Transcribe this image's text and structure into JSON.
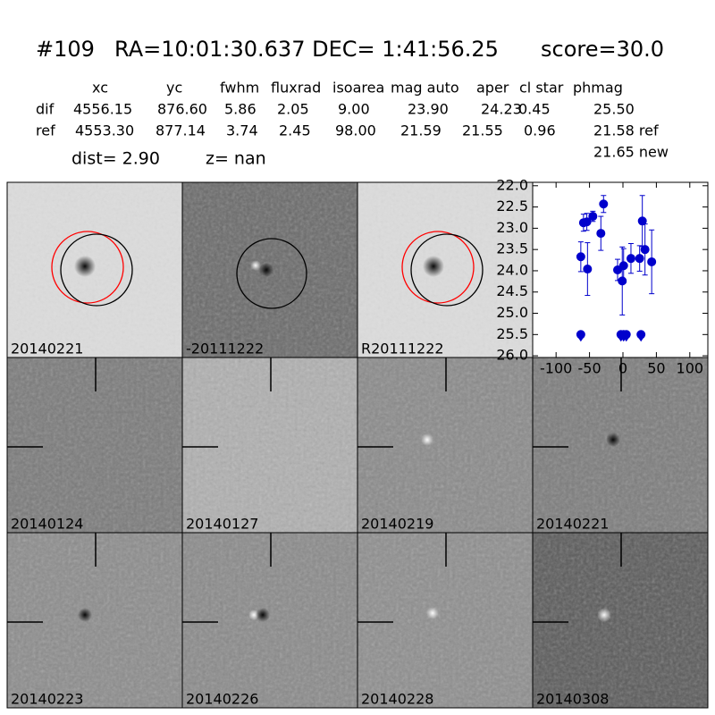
{
  "header": {
    "id": "#109",
    "coords": "RA=10:01:30.637 DEC= 1:41:56.25",
    "score": "score=30.0"
  },
  "table": {
    "columns": [
      "xc",
      "yc",
      "fwhm",
      "fluxrad",
      "isoarea",
      "mag auto",
      "aper",
      "cl star",
      "phmag"
    ],
    "rows": [
      [
        "dif",
        "4556.15",
        "876.60",
        "5.86",
        "2.05",
        "9.00",
        "23.90",
        "24.23",
        "0.45",
        "25.50"
      ],
      [
        "ref",
        "4553.30",
        "877.14",
        "3.74",
        "2.45",
        "98.00",
        "21.59",
        "21.55",
        "0.96",
        "21.58 ref"
      ]
    ],
    "extra": "21.65 new"
  },
  "dist": "dist=  2.90",
  "z": "z=   nan",
  "panels": [
    {
      "label": "20140221"
    },
    {
      "label": "-20111222"
    },
    {
      "label": "R20111222"
    },
    {
      "label": "20140124"
    },
    {
      "label": "20140127"
    },
    {
      "label": "20140219"
    },
    {
      "label": "20140221",
      "color": "#ff0000"
    },
    {
      "label": "20140223"
    },
    {
      "label": "20140226"
    },
    {
      "label": "20140228"
    },
    {
      "label": "20140308"
    }
  ],
  "chart_data": {
    "type": "scatter",
    "xlim": [
      -135,
      127
    ],
    "ylim": [
      26.04,
      21.92
    ],
    "xticks": [
      -100,
      -50,
      0,
      50,
      100
    ],
    "yticks": [
      {
        "value": 22,
        "label": "22.0"
      },
      {
        "value": 22.5,
        "label": "22.5"
      },
      {
        "value": 23,
        "label": "23.0"
      },
      {
        "value": 23.5,
        "label": "23.5"
      },
      {
        "value": 24,
        "label": "24.0"
      },
      {
        "value": 24.5,
        "label": "24.5"
      },
      {
        "value": 25,
        "label": "25.0"
      },
      {
        "value": 25.5,
        "label": "25.5"
      },
      {
        "value": 26,
        "label": "26.0"
      }
    ],
    "series": [
      {
        "color": "#0000cc",
        "x": [
          -63,
          -59,
          -54,
          -53,
          -45,
          -33,
          -29,
          -8,
          -1,
          1,
          12,
          25,
          29,
          33,
          43
        ],
        "values": [
          23.67,
          22.87,
          22.85,
          23.96,
          22.72,
          23.12,
          22.43,
          23.98,
          24.24,
          23.88,
          23.71,
          23.71,
          22.83,
          23.5,
          23.79
        ],
        "errors": [
          0.35,
          0.2,
          0.2,
          0.62,
          0.12,
          0.4,
          0.2,
          0.25,
          0.8,
          0.4,
          0.35,
          0.3,
          0.6,
          0.6,
          0.75
        ]
      },
      {
        "color": "#0000cc",
        "marker": "limit",
        "x": [
          -63,
          -3,
          1,
          5,
          27
        ],
        "values": [
          25.5,
          25.5,
          25.5,
          25.5,
          25.5
        ]
      }
    ]
  }
}
